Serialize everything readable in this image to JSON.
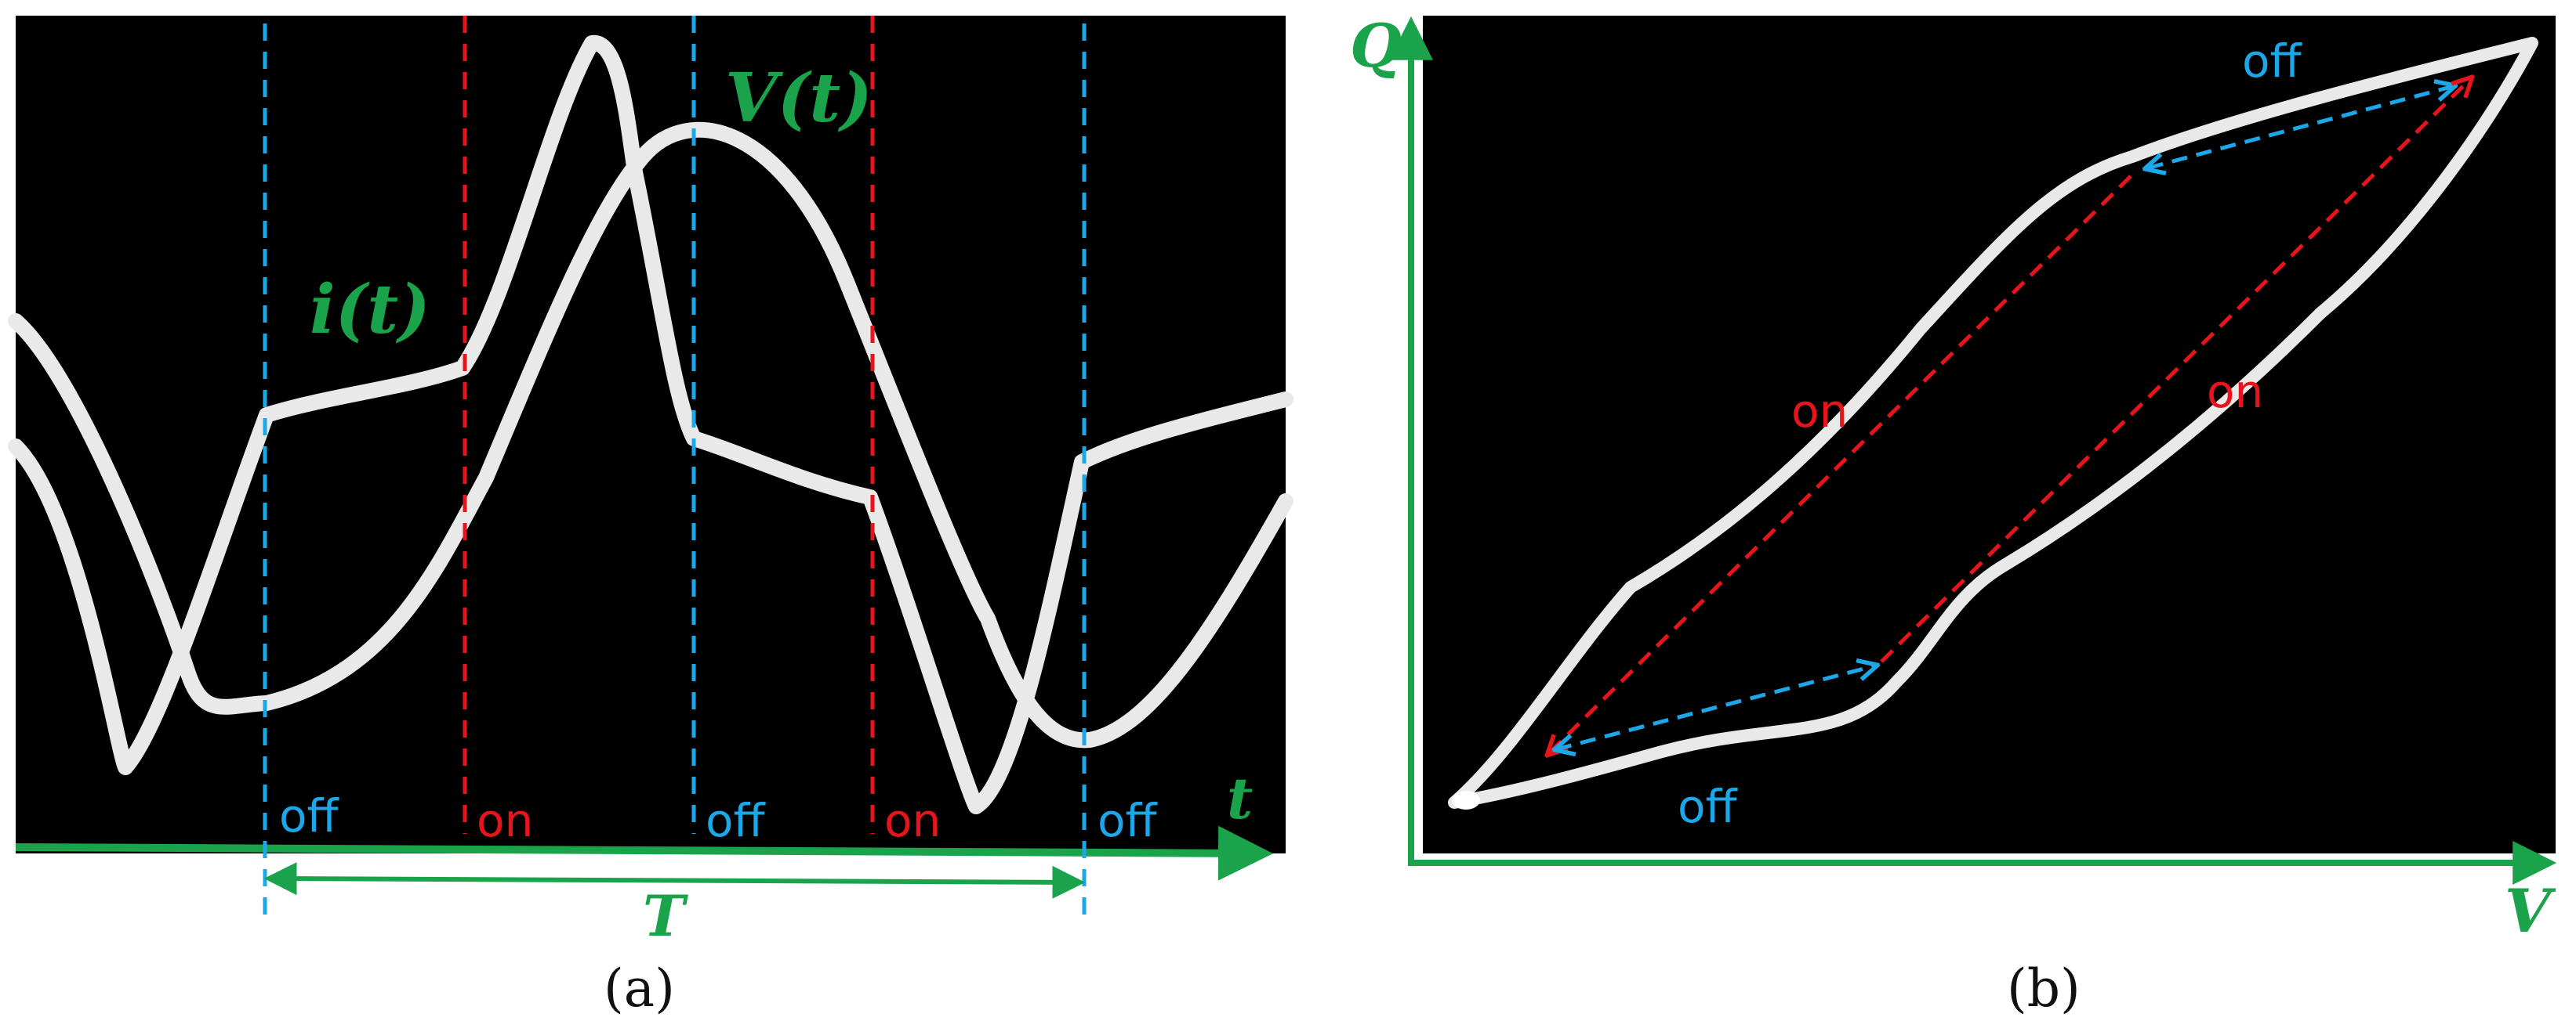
{
  "colors": {
    "plot_background": "#000000",
    "trace": "#e9e9e9",
    "axis_and_labels": "#1aa34a",
    "off_marker": "#1ca7e8",
    "on_marker": "#e8141c",
    "panel_label": "#111111"
  },
  "panel_a": {
    "label": "(a)",
    "current_label": "i(t)",
    "voltage_label": "V(t)",
    "time_axis_label": "t",
    "period_label": "T",
    "markers": [
      {
        "state": "off",
        "kind": "off"
      },
      {
        "state": "on",
        "kind": "on"
      },
      {
        "state": "off",
        "kind": "off"
      },
      {
        "state": "on",
        "kind": "on"
      },
      {
        "state": "off",
        "kind": "off"
      }
    ]
  },
  "panel_b": {
    "label": "(b)",
    "y_axis_label": "Q",
    "x_axis_label": "V",
    "branch_labels": [
      {
        "text": "off",
        "kind": "off"
      },
      {
        "text": "on",
        "kind": "on"
      },
      {
        "text": "on",
        "kind": "on"
      },
      {
        "text": "off",
        "kind": "off"
      }
    ]
  }
}
